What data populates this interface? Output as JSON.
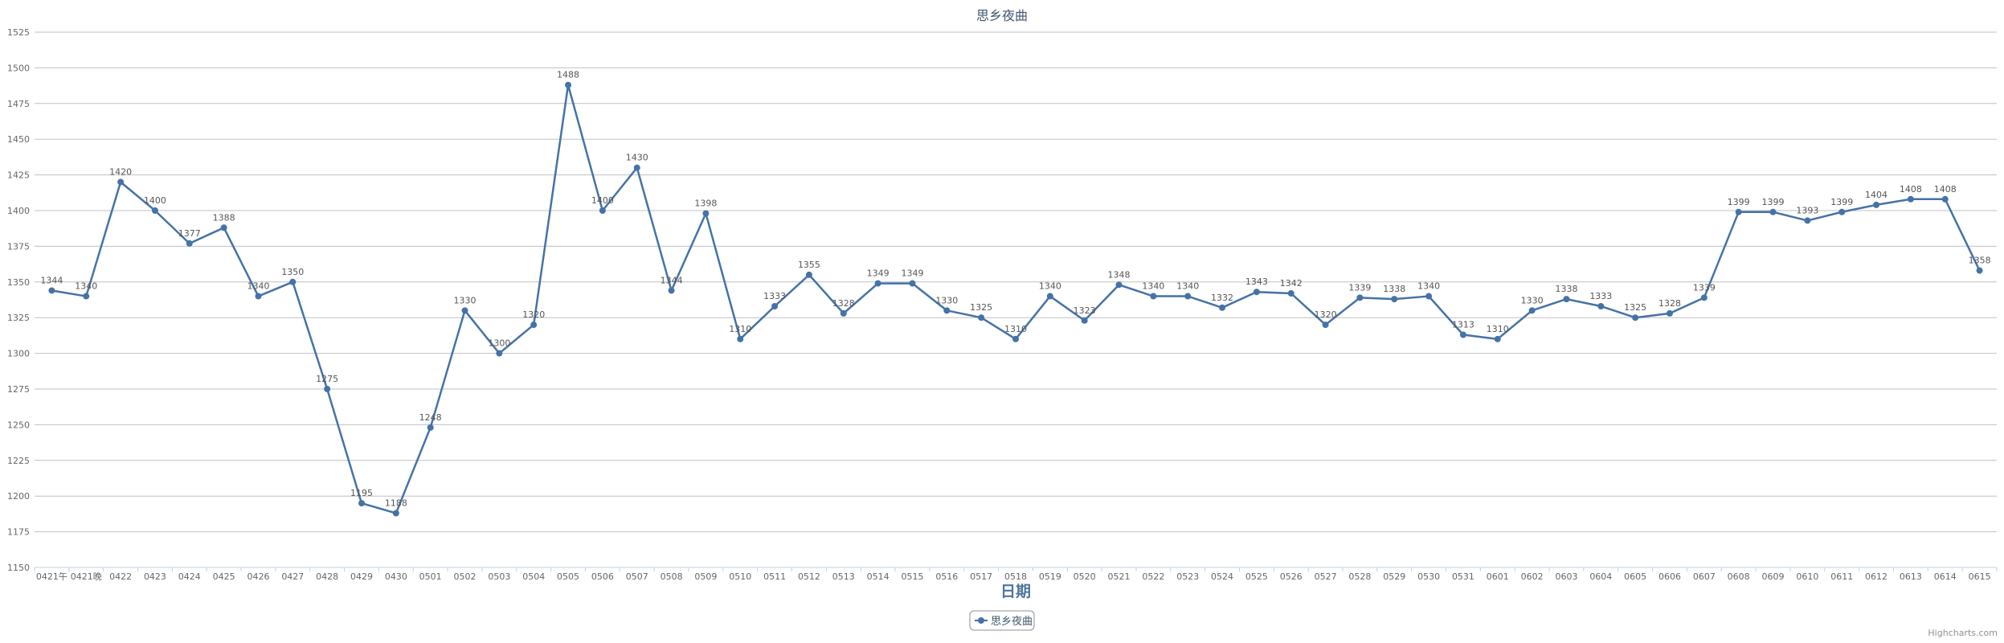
{
  "chart_data": {
    "type": "line",
    "title": "思乡夜曲",
    "xlabel": "日期",
    "ylabel": "",
    "ylim": [
      1150,
      1525
    ],
    "y_tick_interval": 25,
    "grid": true,
    "legend_position": "bottom-center",
    "data_labels": true,
    "categories": [
      "0421午",
      "0421晚",
      "0422",
      "0423",
      "0424",
      "0425",
      "0426",
      "0427",
      "0428",
      "0429",
      "0430",
      "0501",
      "0502",
      "0503",
      "0504",
      "0505",
      "0506",
      "0507",
      "0508",
      "0509",
      "0510",
      "0511",
      "0512",
      "0513",
      "0514",
      "0515",
      "0516",
      "0517",
      "0518",
      "0519",
      "0520",
      "0521",
      "0522",
      "0523",
      "0524",
      "0525",
      "0526",
      "0527",
      "0528",
      "0529",
      "0530",
      "0531",
      "0601",
      "0602",
      "0603",
      "0604",
      "0605",
      "0606",
      "0607",
      "0608",
      "0609",
      "0610",
      "0611",
      "0612",
      "0613",
      "0614",
      "0615"
    ],
    "series": [
      {
        "name": "思乡夜曲",
        "color": "#4572A7",
        "values": [
          1344,
          1340,
          1420,
          1400,
          1377,
          1388,
          1340,
          1350,
          1275,
          1195,
          1188,
          1248,
          1330,
          1300,
          1320,
          1488,
          1400,
          1430,
          1344,
          1398,
          1310,
          1333,
          1355,
          1328,
          1349,
          1349,
          1330,
          1325,
          1310,
          1340,
          1323,
          1348,
          1340,
          1340,
          1332,
          1343,
          1342,
          1320,
          1339,
          1338,
          1340,
          1313,
          1310,
          1330,
          1338,
          1333,
          1325,
          1328,
          1339,
          1399,
          1399,
          1393,
          1399,
          1404,
          1408,
          1408,
          1358
        ]
      }
    ]
  },
  "credit": "Highcharts.com"
}
